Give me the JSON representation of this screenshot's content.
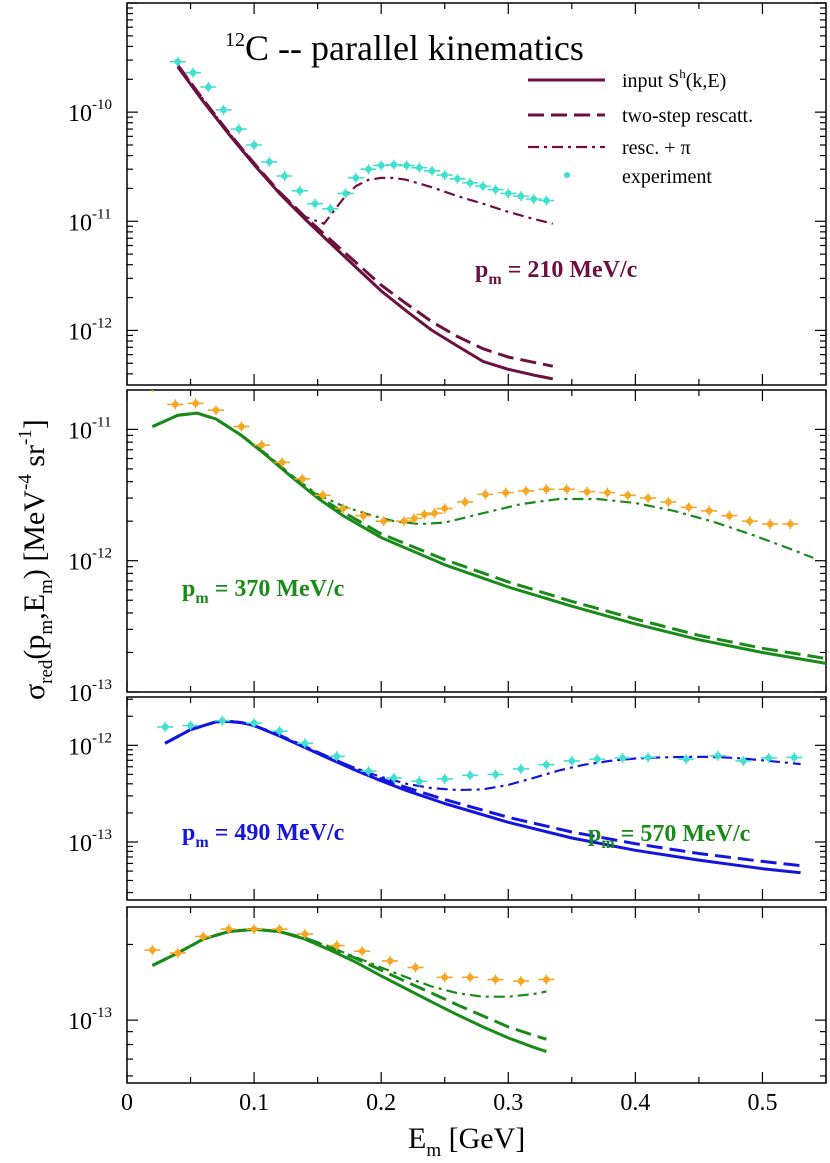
{
  "figure": {
    "title_sup": "12",
    "title_main": "C -- parallel kinematics",
    "xlabel_main": "E",
    "xlabel_sub": "m",
    "xlabel_unit": " [GeV]",
    "ylabel": {
      "sigma": "σ",
      "sub": "red",
      "args_a": "(p",
      "args_sub1": "m",
      "args_b": ",E",
      "args_sub2": "m",
      "args_c": ") [MeV",
      "sup1": "-4",
      "mid": " sr",
      "sup2": "-1",
      "end": "]"
    },
    "x_ticks": [
      0,
      0.1,
      0.2,
      0.3,
      0.4,
      0.5
    ],
    "x_tick_labels": [
      "0",
      "0.1",
      "0.2",
      "0.3",
      "0.4",
      "0.5"
    ],
    "xlim": [
      0,
      0.55
    ]
  },
  "legend": {
    "items": [
      {
        "label_pre": "input S",
        "label_sup": "h",
        "label_post": "(k,E)",
        "style": "solid"
      },
      {
        "label_pre": "two-step rescatt.",
        "label_sup": "",
        "label_post": "",
        "style": "dashed"
      },
      {
        "label_pre": "resc. + π",
        "label_sup": "",
        "label_post": "",
        "style": "dashdot"
      },
      {
        "label_pre": "experiment",
        "label_sup": "",
        "label_post": "",
        "style": "marker"
      }
    ]
  },
  "chart_data": [
    {
      "type": "line",
      "panel": "pm210",
      "label_p": "p",
      "label_sub": "m",
      "label_val": " = 210 MeV/c",
      "color": "#6b1040",
      "data_color": "#40e0d0",
      "ylim_log10": [
        -12.5,
        -9.0
      ],
      "y_ticks": [
        {
          "base": "10",
          "exp": "-10",
          "v": -10
        },
        {
          "base": "10",
          "exp": "-11",
          "v": -11
        },
        {
          "base": "10",
          "exp": "-12",
          "v": -12
        }
      ],
      "series": [
        {
          "name": "input S^h(k,E)",
          "style": "solid",
          "x": [
            0.04,
            0.06,
            0.08,
            0.1,
            0.12,
            0.14,
            0.16,
            0.18,
            0.2,
            0.22,
            0.24,
            0.26,
            0.28,
            0.3,
            0.32,
            0.335
          ],
          "y": [
            2.6e-10,
            1.25e-10,
            6.3e-11,
            3.3e-11,
            1.8e-11,
            1.05e-11,
            6.3e-12,
            3.8e-12,
            2.3e-12,
            1.5e-12,
            1e-12,
            7.2e-13,
            5.2e-13,
            4.4e-13,
            3.9e-13,
            3.6e-13
          ]
        },
        {
          "name": "two-step rescatt.",
          "style": "dashed",
          "x": [
            0.04,
            0.06,
            0.08,
            0.1,
            0.12,
            0.14,
            0.16,
            0.18,
            0.2,
            0.22,
            0.24,
            0.26,
            0.28,
            0.3,
            0.32,
            0.335
          ],
          "y": [
            2.7e-10,
            1.3e-10,
            6.5e-11,
            3.4e-11,
            1.85e-11,
            1.1e-11,
            6.8e-12,
            4.2e-12,
            2.6e-12,
            1.75e-12,
            1.2e-12,
            8.8e-13,
            6.8e-13,
            5.7e-13,
            5.1e-13,
            4.7e-13
          ]
        },
        {
          "name": "resc. + π",
          "style": "dashdot",
          "x": [
            0.04,
            0.06,
            0.08,
            0.1,
            0.12,
            0.14,
            0.155,
            0.17,
            0.18,
            0.19,
            0.2,
            0.21,
            0.22,
            0.24,
            0.26,
            0.28,
            0.3,
            0.32,
            0.335
          ],
          "y": [
            2.7e-10,
            1.3e-10,
            6.5e-11,
            3.4e-11,
            1.85e-11,
            1.1e-11,
            9.5e-12,
            1.6e-11,
            2.1e-11,
            2.4e-11,
            2.5e-11,
            2.5e-11,
            2.4e-11,
            2.05e-11,
            1.7e-11,
            1.45e-11,
            1.22e-11,
            1.05e-11,
            9.5e-12
          ]
        },
        {
          "name": "experiment",
          "style": "marker",
          "x": [
            0.04,
            0.052,
            0.064,
            0.076,
            0.088,
            0.1,
            0.112,
            0.124,
            0.136,
            0.148,
            0.16,
            0.172,
            0.18,
            0.19,
            0.2,
            0.21,
            0.22,
            0.23,
            0.24,
            0.25,
            0.26,
            0.27,
            0.28,
            0.29,
            0.3,
            0.31,
            0.32,
            0.33
          ],
          "y": [
            2.9e-10,
            2.3e-10,
            1.7e-10,
            1.05e-10,
            7e-11,
            5e-11,
            3.5e-11,
            2.6e-11,
            1.9e-11,
            1.45e-11,
            1.3e-11,
            1.8e-11,
            2.5e-11,
            3e-11,
            3.25e-11,
            3.3e-11,
            3.25e-11,
            3.1e-11,
            2.9e-11,
            2.65e-11,
            2.45e-11,
            2.25e-11,
            2.1e-11,
            1.95e-11,
            1.8e-11,
            1.7e-11,
            1.6e-11,
            1.55e-11
          ]
        }
      ]
    },
    {
      "type": "line",
      "panel": "pm370",
      "label_p": "p",
      "label_sub": "m",
      "label_val": " = 370 MeV/c",
      "color": "#1a8a1a",
      "data_color": "#f5a623",
      "ylim_log10": [
        -13.0,
        -10.7
      ],
      "y_ticks": [
        {
          "base": "10",
          "exp": "-11",
          "v": -11
        },
        {
          "base": "10",
          "exp": "-12",
          "v": -12
        },
        {
          "base": "10",
          "exp": "-13",
          "v": -13
        }
      ],
      "series": [
        {
          "name": "input S^h(k,E)",
          "style": "solid",
          "x": [
            0.02,
            0.04,
            0.055,
            0.07,
            0.09,
            0.11,
            0.13,
            0.15,
            0.17,
            0.2,
            0.25,
            0.3,
            0.35,
            0.4,
            0.45,
            0.5,
            0.55
          ],
          "y": [
            1.05e-11,
            1.28e-11,
            1.33e-11,
            1.2e-11,
            9e-12,
            6.3e-12,
            4.3e-12,
            3e-12,
            2.2e-12,
            1.5e-12,
            9.3e-13,
            6.3e-13,
            4.5e-13,
            3.3e-13,
            2.5e-13,
            2e-13,
            1.65e-13
          ]
        },
        {
          "name": "two-step rescatt.",
          "style": "dashed",
          "x": [
            0.02,
            0.04,
            0.055,
            0.07,
            0.09,
            0.11,
            0.13,
            0.15,
            0.17,
            0.2,
            0.25,
            0.3,
            0.35,
            0.4,
            0.45,
            0.5,
            0.55
          ],
          "y": [
            1.05e-11,
            1.28e-11,
            1.33e-11,
            1.2e-11,
            9e-12,
            6.4e-12,
            4.4e-12,
            3.1e-12,
            2.35e-12,
            1.6e-12,
            1.02e-12,
            6.9e-13,
            4.9e-13,
            3.6e-13,
            2.7e-13,
            2.15e-13,
            1.8e-13
          ]
        },
        {
          "name": "resc. + π",
          "style": "dashdot",
          "x": [
            0.02,
            0.04,
            0.055,
            0.07,
            0.09,
            0.11,
            0.13,
            0.15,
            0.17,
            0.19,
            0.21,
            0.23,
            0.25,
            0.28,
            0.31,
            0.34,
            0.37,
            0.4,
            0.43,
            0.46,
            0.49,
            0.52,
            0.54
          ],
          "y": [
            1.05e-11,
            1.28e-11,
            1.33e-11,
            1.2e-11,
            9e-12,
            6.4e-12,
            4.4e-12,
            3.2e-12,
            2.6e-12,
            2.25e-12,
            2e-12,
            1.9e-12,
            1.95e-12,
            2.3e-12,
            2.7e-12,
            2.95e-12,
            2.95e-12,
            2.75e-12,
            2.4e-12,
            2e-12,
            1.6e-12,
            1.25e-12,
            1.05e-12
          ]
        },
        {
          "name": "experiment",
          "style": "marker",
          "x": [
            0.02,
            0.038,
            0.054,
            0.07,
            0.09,
            0.106,
            0.122,
            0.138,
            0.154,
            0.17,
            0.186,
            0.202,
            0.218,
            0.226,
            0.234,
            0.242,
            0.25,
            0.266,
            0.282,
            0.298,
            0.314,
            0.33,
            0.346,
            0.362,
            0.378,
            0.394,
            0.41,
            0.426,
            0.442,
            0.458,
            0.474,
            0.49,
            0.506,
            0.522
          ],
          "y": [
            2.1e-11,
            1.55e-11,
            1.58e-11,
            1.4e-11,
            1.05e-11,
            7.6e-12,
            5.6e-12,
            4.2e-12,
            3.15e-12,
            2.5e-12,
            2.2e-12,
            2e-12,
            2e-12,
            2.1e-12,
            2.25e-12,
            2.3e-12,
            2.5e-12,
            2.8e-12,
            3.2e-12,
            3.3e-12,
            3.4e-12,
            3.5e-12,
            3.5e-12,
            3.35e-12,
            3.3e-12,
            3.15e-12,
            3e-12,
            2.8e-12,
            2.55e-12,
            2.4e-12,
            2.2e-12,
            2e-12,
            1.9e-12,
            1.9e-12
          ]
        }
      ]
    },
    {
      "type": "line",
      "panel": "pm490",
      "label_p": "p",
      "label_sub": "m",
      "label_val": " = 490 MeV/c",
      "color": "#1515e0",
      "data_color": "#40e0d0",
      "ylim_log10": [
        -13.6,
        -11.5
      ],
      "y_ticks": [
        {
          "base": "10",
          "exp": "-12",
          "v": -12
        },
        {
          "base": "10",
          "exp": "-13",
          "v": -13
        }
      ],
      "series": [
        {
          "name": "input S^h(k,E)",
          "style": "solid",
          "x": [
            0.03,
            0.05,
            0.07,
            0.08,
            0.09,
            0.1,
            0.12,
            0.14,
            0.16,
            0.18,
            0.2,
            0.22,
            0.25,
            0.3,
            0.35,
            0.4,
            0.45,
            0.5,
            0.53
          ],
          "y": [
            1.05e-12,
            1.45e-12,
            1.75e-12,
            1.77e-12,
            1.72e-12,
            1.6e-12,
            1.25e-12,
            9.5e-13,
            7.2e-13,
            5.5e-13,
            4.3e-13,
            3.4e-13,
            2.5e-13,
            1.6e-13,
            1.1e-13,
            8.2e-14,
            6.5e-14,
            5.3e-14,
            4.8e-14
          ]
        },
        {
          "name": "two-step rescatt.",
          "style": "dashed",
          "x": [
            0.03,
            0.05,
            0.07,
            0.08,
            0.09,
            0.1,
            0.12,
            0.14,
            0.16,
            0.18,
            0.2,
            0.22,
            0.25,
            0.3,
            0.35,
            0.4,
            0.45,
            0.5,
            0.53
          ],
          "y": [
            1.05e-12,
            1.45e-12,
            1.75e-12,
            1.77e-12,
            1.72e-12,
            1.6e-12,
            1.27e-12,
            9.7e-13,
            7.4e-13,
            5.7e-13,
            4.5e-13,
            3.65e-13,
            2.75e-13,
            1.8e-13,
            1.27e-13,
            9.6e-14,
            7.6e-14,
            6.3e-14,
            5.7e-14
          ]
        },
        {
          "name": "resc. + π",
          "style": "dashdot",
          "x": [
            0.03,
            0.05,
            0.07,
            0.08,
            0.09,
            0.1,
            0.12,
            0.14,
            0.16,
            0.18,
            0.2,
            0.22,
            0.24,
            0.26,
            0.28,
            0.3,
            0.32,
            0.34,
            0.36,
            0.38,
            0.4,
            0.42,
            0.44,
            0.46,
            0.48,
            0.5,
            0.53
          ],
          "y": [
            1.05e-12,
            1.45e-12,
            1.75e-12,
            1.77e-12,
            1.72e-12,
            1.6e-12,
            1.27e-12,
            9.7e-13,
            7.4e-13,
            5.8e-13,
            4.7e-13,
            4e-13,
            3.6e-13,
            3.45e-13,
            3.5e-13,
            3.9e-13,
            4.6e-13,
            5.5e-13,
            6.3e-13,
            6.9e-13,
            7.3e-13,
            7.5e-13,
            7.6e-13,
            7.6e-13,
            7.4e-13,
            7e-13,
            6.4e-13
          ]
        },
        {
          "name": "experiment",
          "style": "marker",
          "x": [
            0.03,
            0.05,
            0.075,
            0.1,
            0.12,
            0.14,
            0.165,
            0.19,
            0.21,
            0.23,
            0.25,
            0.27,
            0.29,
            0.31,
            0.33,
            0.35,
            0.37,
            0.39,
            0.41,
            0.44,
            0.465,
            0.485,
            0.505,
            0.525
          ],
          "y": [
            1.55e-12,
            1.6e-12,
            1.8e-12,
            1.7e-12,
            1.4e-12,
            1.05e-12,
            7.7e-13,
            5.4e-13,
            4.6e-13,
            4.25e-13,
            4.5e-13,
            4.9e-13,
            5e-13,
            5.7e-13,
            6.3e-13,
            6.9e-13,
            7.2e-13,
            7.4e-13,
            7.5e-13,
            7.2e-13,
            7.8e-13,
            6.9e-13,
            7.4e-13,
            7.5e-13
          ]
        }
      ]
    },
    {
      "type": "line",
      "panel": "pm570",
      "label_p": "p",
      "label_sub": "m",
      "label_val": " = 570 MeV/c",
      "color": "#1a8a1a",
      "data_color": "#f5a623",
      "ylim_log10": [
        -13.25,
        -12.55
      ],
      "y_ticks": [
        {
          "base": "10",
          "exp": "-13",
          "v": -13
        }
      ],
      "series": [
        {
          "name": "input S^h(k,E)",
          "style": "solid",
          "x": [
            0.02,
            0.04,
            0.06,
            0.08,
            0.1,
            0.12,
            0.14,
            0.16,
            0.18,
            0.2,
            0.22,
            0.24,
            0.26,
            0.28,
            0.3,
            0.32,
            0.33
          ],
          "y": [
            1.65e-13,
            1.85e-13,
            2.1e-13,
            2.25e-13,
            2.3e-13,
            2.25e-13,
            2.1e-13,
            1.9e-13,
            1.7e-13,
            1.5e-13,
            1.33e-13,
            1.18e-13,
            1.05e-13,
            9.4e-14,
            8.5e-14,
            7.8e-14,
            7.5e-14
          ]
        },
        {
          "name": "two-step rescatt.",
          "style": "dashed",
          "x": [
            0.02,
            0.04,
            0.06,
            0.08,
            0.1,
            0.12,
            0.14,
            0.16,
            0.18,
            0.2,
            0.22,
            0.24,
            0.26,
            0.28,
            0.3,
            0.32,
            0.33
          ],
          "y": [
            1.65e-13,
            1.85e-13,
            2.1e-13,
            2.25e-13,
            2.3e-13,
            2.25e-13,
            2.12e-13,
            1.95e-13,
            1.76e-13,
            1.58e-13,
            1.42e-13,
            1.28e-13,
            1.15e-13,
            1.04e-13,
            9.4e-14,
            8.7e-14,
            8.4e-14
          ]
        },
        {
          "name": "resc. + π",
          "style": "dashdot",
          "x": [
            0.02,
            0.04,
            0.06,
            0.08,
            0.1,
            0.12,
            0.14,
            0.16,
            0.18,
            0.2,
            0.22,
            0.24,
            0.26,
            0.28,
            0.3,
            0.32,
            0.33
          ],
          "y": [
            1.65e-13,
            1.85e-13,
            2.1e-13,
            2.25e-13,
            2.3e-13,
            2.25e-13,
            2.12e-13,
            1.95e-13,
            1.78e-13,
            1.62e-13,
            1.48e-13,
            1.36e-13,
            1.28e-13,
            1.24e-13,
            1.24e-13,
            1.27e-13,
            1.3e-13
          ]
        },
        {
          "name": "experiment",
          "style": "marker",
          "x": [
            0.02,
            0.04,
            0.06,
            0.08,
            0.1,
            0.12,
            0.14,
            0.165,
            0.185,
            0.207,
            0.227,
            0.25,
            0.27,
            0.29,
            0.31,
            0.33
          ],
          "y": [
            1.9e-13,
            1.85e-13,
            2.15e-13,
            2.3e-13,
            2.3e-13,
            2.3e-13,
            2.2e-13,
            1.98e-13,
            1.88e-13,
            1.72e-13,
            1.62e-13,
            1.48e-13,
            1.48e-13,
            1.45e-13,
            1.43e-13,
            1.45e-13
          ]
        }
      ]
    }
  ]
}
